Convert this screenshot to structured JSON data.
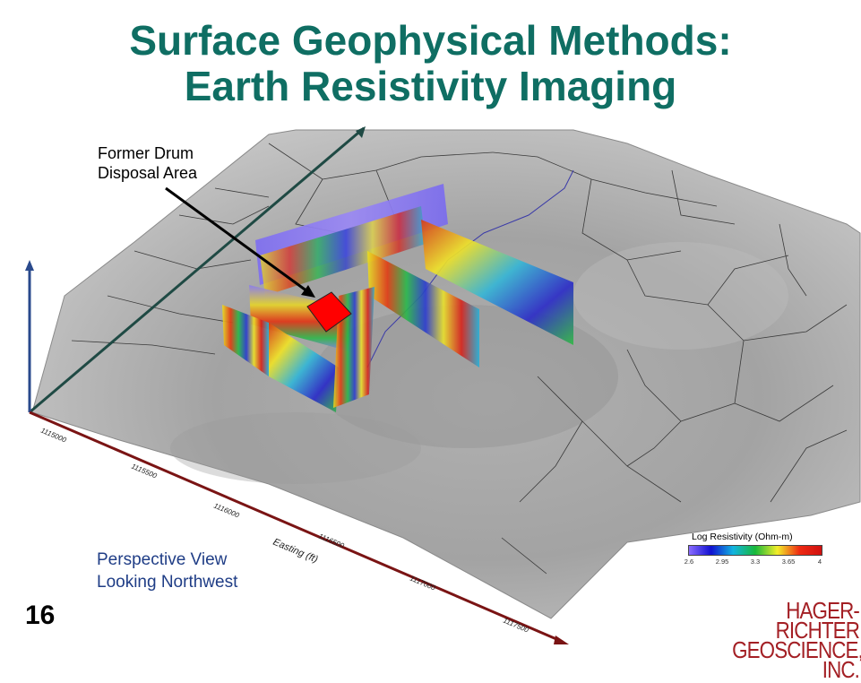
{
  "slide": {
    "title_line1": "Surface Geophysical Methods:",
    "title_line2": "Earth Resistivity Imaging",
    "callout_line1": "Former Drum",
    "callout_line2": "Disposal Area",
    "perspective_line1": "Perspective View",
    "perspective_line2": "Looking Northwest",
    "slide_number": "16"
  },
  "axis": {
    "label": "Easting (ft)",
    "ticks": [
      "1115000",
      "1115500",
      "1116000",
      "1116500",
      "1117000",
      "1117500"
    ]
  },
  "legend": {
    "title": "Log Resistivity (Ohm-m)",
    "ticks": [
      "2.6",
      "2.95",
      "3.3",
      "3.65",
      "4"
    ]
  },
  "logo": {
    "line1": "HAGER-RICHTER",
    "line2": "GEOSCIENCE, INC."
  },
  "colors": {
    "title": "#0f6e63",
    "caption": "#1f3d86",
    "axis_red": "#7a1414",
    "axis_blue": "#2a4a8c",
    "axis_green": "#1f4a44",
    "disposal_area": "#ff0000",
    "logo": "#a31f24"
  }
}
